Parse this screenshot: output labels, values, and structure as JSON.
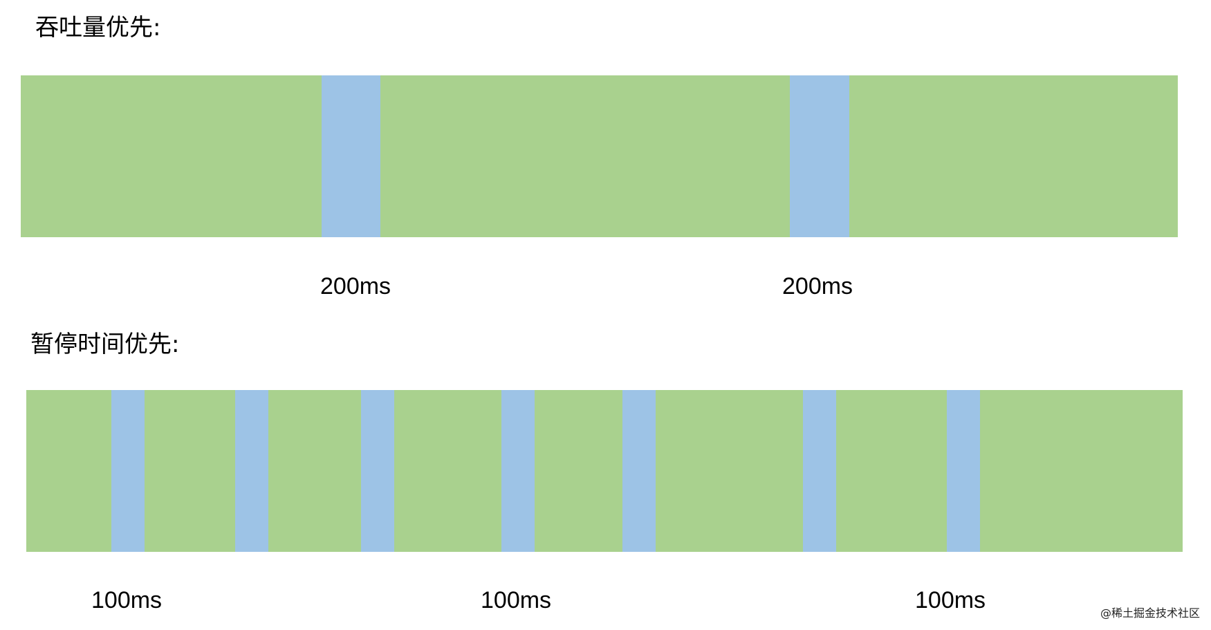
{
  "throughput_section": {
    "title": "吞吐量优先:",
    "labels": [
      "200ms",
      "200ms"
    ],
    "bar_color": "#a9d18e",
    "pause_color": "#9dc3e6"
  },
  "pause_section": {
    "title": "暂停时间优先:",
    "labels": [
      "100ms",
      "100ms",
      "100ms"
    ],
    "bar_color": "#a9d18e",
    "pause_color": "#9dc3e6"
  },
  "watermark": "@稀土掘金技术社区"
}
